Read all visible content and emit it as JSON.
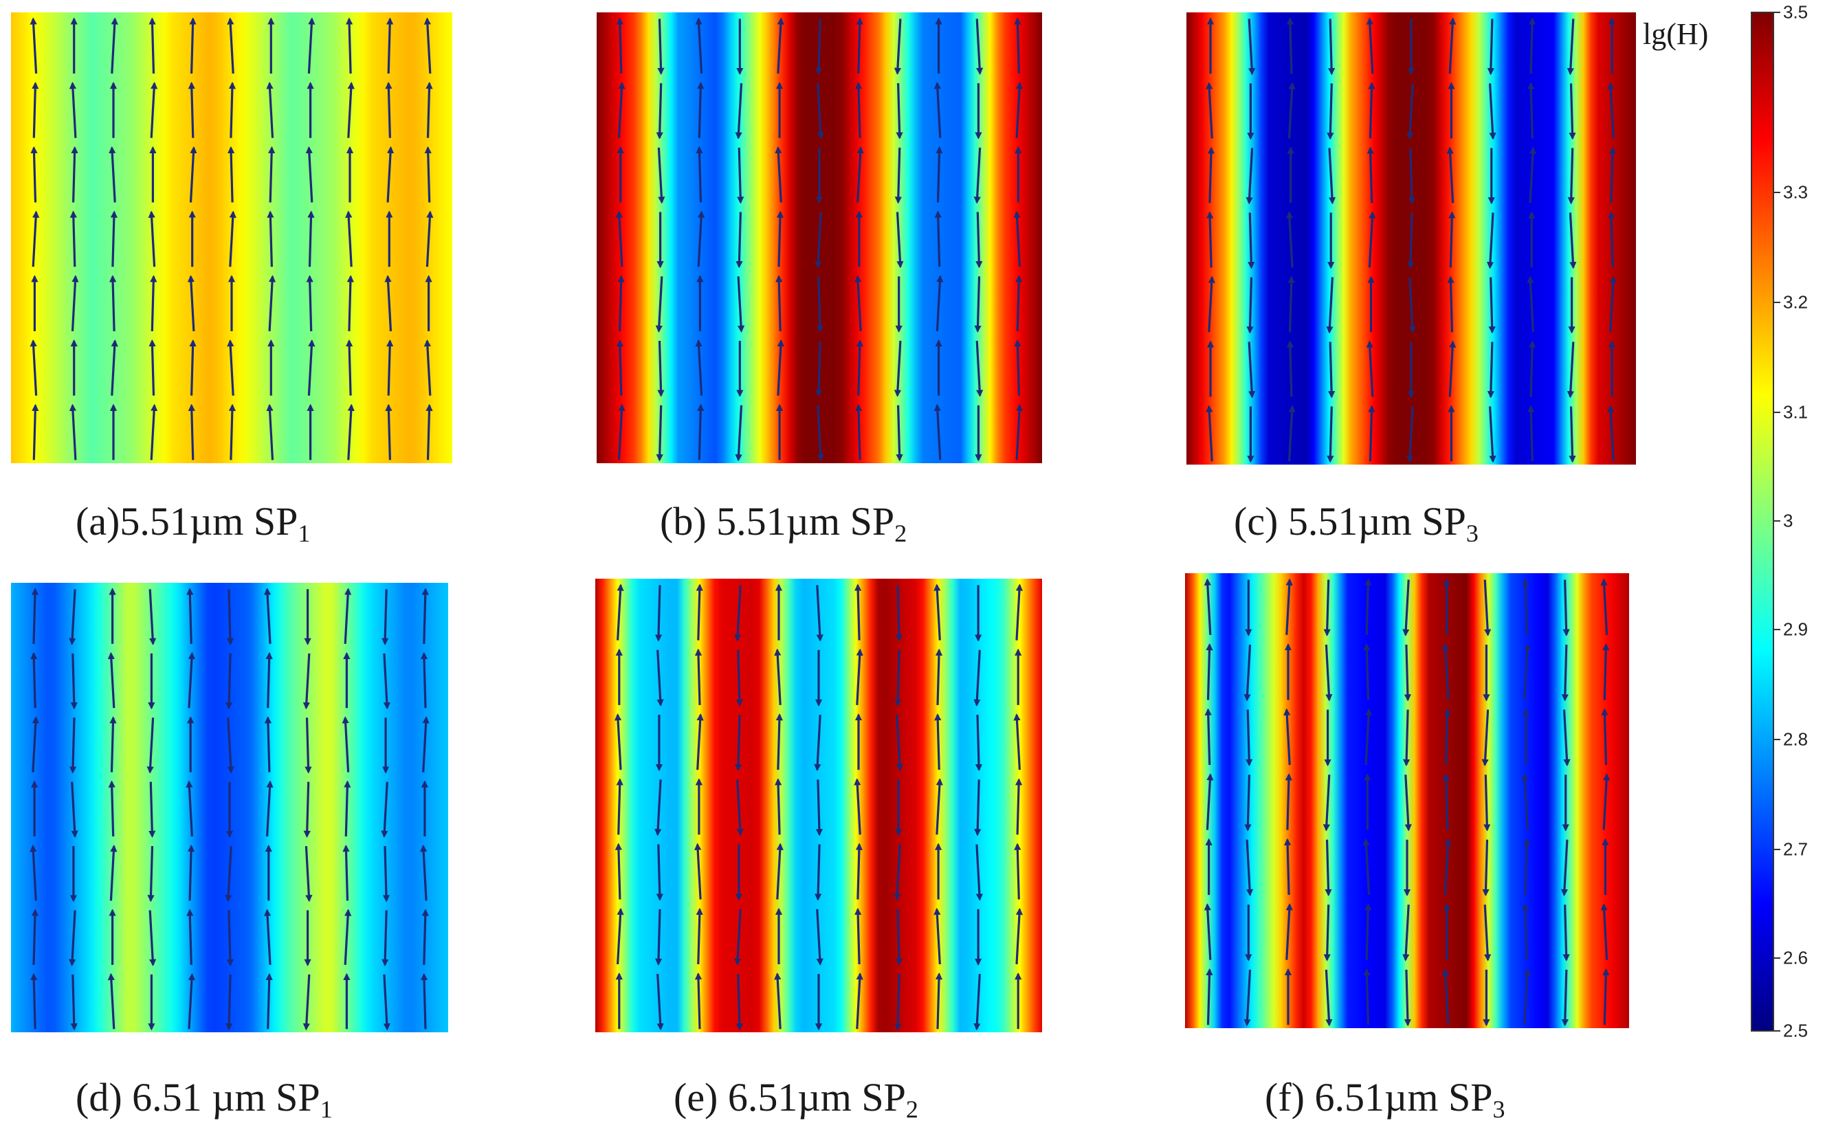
{
  "figure": {
    "colorbar": {
      "label": "lg(H)",
      "min": 2.5,
      "max": 3.5,
      "ticks": [
        "3.5",
        "3.3",
        "3.2",
        "3.1",
        "3",
        "2.9",
        "2.8",
        "2.7",
        "2.6",
        "2.5"
      ],
      "tick_values": [
        3.5,
        3.3,
        3.2,
        3.1,
        3.0,
        2.9,
        2.8,
        2.7,
        2.6,
        2.5
      ],
      "colormap": [
        "#00007f",
        "#0000ff",
        "#007fff",
        "#00ffff",
        "#7fff7f",
        "#ffff00",
        "#ff7f00",
        "#ff0000",
        "#7f0000"
      ]
    },
    "arrow_color": "#1e2a78",
    "panels": [
      {
        "id": "a",
        "caption_main": "(a)5.51µm  SP",
        "caption_sub": "1",
        "field_profile": [
          3.18,
          3.08,
          2.96,
          3.02,
          3.15,
          3.2,
          3.1,
          2.97,
          3.03,
          3.16,
          3.2,
          3.12
        ],
        "arrow_direction": "up"
      },
      {
        "id": "b",
        "caption_main": "(b) 5.51µm  SP",
        "caption_sub": "2",
        "field_profile": [
          3.5,
          3.3,
          2.78,
          2.7,
          3.1,
          3.5,
          3.5,
          3.25,
          2.75,
          2.72,
          3.3,
          3.5
        ],
        "arrow_direction": "mixed"
      },
      {
        "id": "c",
        "caption_main": "(c) 5.51µm  SP",
        "caption_sub": "3",
        "field_profile": [
          3.5,
          3.2,
          2.58,
          2.55,
          3.2,
          3.5,
          3.5,
          3.15,
          2.58,
          2.62,
          3.4,
          3.5
        ],
        "arrow_direction": "mixed"
      },
      {
        "id": "d",
        "caption_main": "(d) 6.51 µm  SP",
        "caption_sub": "1",
        "field_profile": [
          2.8,
          2.7,
          2.85,
          3.08,
          2.9,
          2.68,
          2.72,
          2.95,
          3.1,
          2.85,
          2.75,
          2.82
        ],
        "arrow_direction": "mixed"
      },
      {
        "id": "e",
        "caption_main": "(e) 6.51µm  SP",
        "caption_sub": "2",
        "field_profile": [
          3.45,
          2.85,
          2.8,
          3.4,
          3.42,
          2.8,
          2.85,
          3.48,
          3.4,
          2.8,
          2.9,
          3.4
        ],
        "arrow_direction": "mixed"
      },
      {
        "id": "f",
        "caption_main": "(f) 6.51µm  SP",
        "caption_sub": "3",
        "field_profile": [
          3.45,
          2.6,
          3.0,
          3.45,
          2.65,
          2.6,
          3.45,
          3.5,
          2.7,
          2.6,
          3.3,
          3.45
        ],
        "arrow_direction": "mixed"
      }
    ]
  }
}
